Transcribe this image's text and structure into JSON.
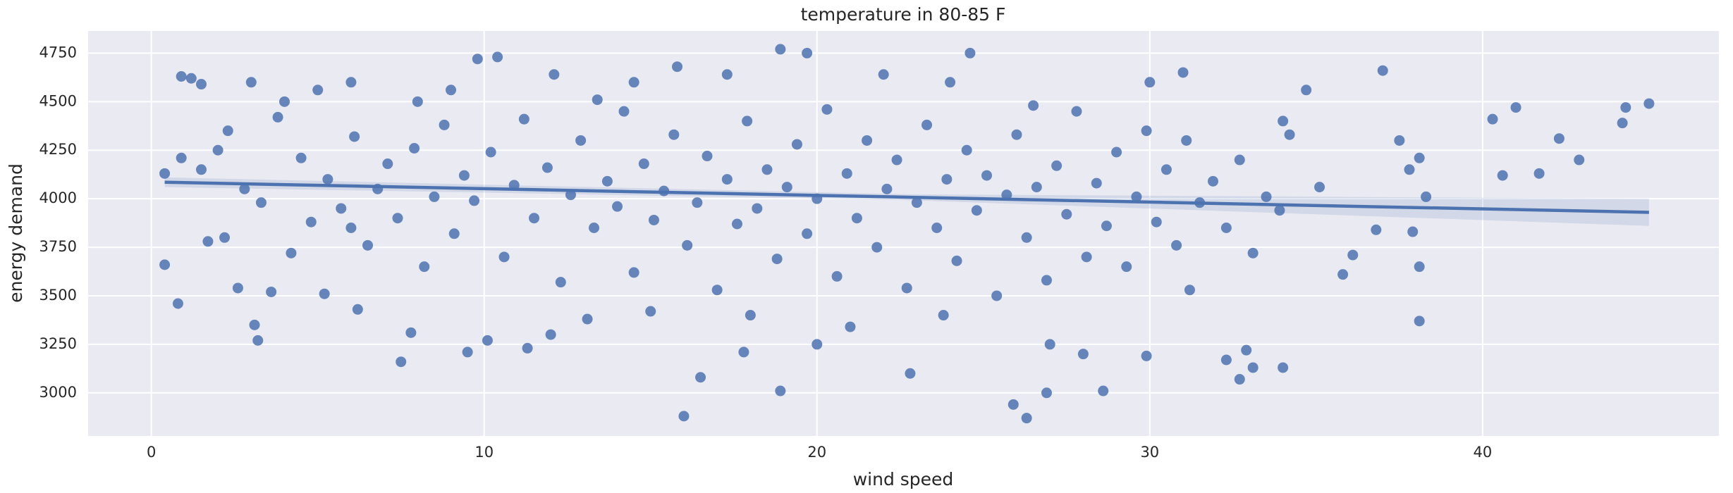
{
  "chart_data": {
    "type": "scatter",
    "title": "temperature in 80-85 F",
    "x_label": "wind speed",
    "y_label": "energy demand",
    "xlim": [
      -1.9,
      47.1
    ],
    "ylim": [
      2778,
      4864
    ],
    "xticks": [
      0,
      10,
      20,
      30,
      40
    ],
    "yticks": [
      3000,
      3250,
      3500,
      3750,
      4000,
      4250,
      4500,
      4750
    ],
    "grid": true,
    "background": "#eaeaf2",
    "series": [
      {
        "name": "observations",
        "color": "#4c72b0",
        "x": [
          0.4,
          0.4,
          0.8,
          0.9,
          0.9,
          1.2,
          1.5,
          1.7,
          2.0,
          2.2,
          2.6,
          3.0,
          3.1,
          3.2,
          3.6,
          4.0,
          5.0,
          5.2,
          6.0,
          6.2,
          7.5,
          7.8,
          9.0,
          9.5,
          9.8,
          10.1,
          10.4,
          11.3,
          12.1,
          13.1,
          13.4,
          15.8,
          16.0,
          16.5,
          17.3,
          17.8,
          18.9,
          18.9,
          19.7,
          21.0,
          22.8,
          24.6,
          25.9,
          26.3,
          26.9,
          28.6,
          29.9,
          31.0,
          31.2,
          32.3,
          32.7,
          32.9,
          33.1,
          34.0,
          34.0,
          34.7,
          35.1,
          35.8,
          36.1,
          36.8,
          37.0,
          37.5,
          37.8,
          37.9,
          38.1,
          38.1,
          38.1,
          38.3,
          40.3,
          40.6,
          41.0,
          41.7,
          42.3,
          42.9,
          44.2,
          44.3,
          45.0,
          1.5,
          2.3,
          2.8,
          3.3,
          3.8,
          4.2,
          4.5,
          4.8,
          5.3,
          5.7,
          6.1,
          6.5,
          6.8,
          7.1,
          7.4,
          7.9,
          8.2,
          8.5,
          8.8,
          9.1,
          9.4,
          9.7,
          10.2,
          10.6,
          10.9,
          11.2,
          11.5,
          11.9,
          12.3,
          12.6,
          12.9,
          13.3,
          13.7,
          14.0,
          14.2,
          14.5,
          14.8,
          15.1,
          15.4,
          15.7,
          16.1,
          16.4,
          16.7,
          17.0,
          17.3,
          17.6,
          17.9,
          18.2,
          18.5,
          18.8,
          19.1,
          19.4,
          19.7,
          20.0,
          20.3,
          20.6,
          20.9,
          21.2,
          21.5,
          21.8,
          22.1,
          22.4,
          22.7,
          23.0,
          23.3,
          23.6,
          23.9,
          24.2,
          24.5,
          24.8,
          25.1,
          25.4,
          25.7,
          26.0,
          26.3,
          26.6,
          26.9,
          27.2,
          27.5,
          27.8,
          28.1,
          28.4,
          28.7,
          29.0,
          29.3,
          29.6,
          29.9,
          30.2,
          30.5,
          30.8,
          31.1,
          31.5,
          31.9,
          32.3,
          32.7,
          33.1,
          33.5,
          33.9,
          34.2,
          12.0,
          15.0,
          20.0,
          23.8,
          27.0,
          28.0,
          30.0,
          8.0,
          14.5,
          22.0,
          26.5,
          6.0,
          18.0,
          24.0
        ],
        "values": [
          4130,
          3660,
          3460,
          4210,
          4630,
          4620,
          4590,
          3780,
          4250,
          3800,
          3540,
          4600,
          3350,
          3270,
          3520,
          4500,
          4560,
          3510,
          4600,
          3430,
          3160,
          3310,
          4560,
          3210,
          4720,
          3270,
          4730,
          3230,
          4640,
          3380,
          4510,
          4680,
          2880,
          3080,
          4640,
          3210,
          3010,
          4770,
          4750,
          3340,
          3100,
          4750,
          2940,
          2870,
          3000,
          3010,
          3190,
          4650,
          3530,
          3170,
          3070,
          3220,
          3130,
          3130,
          4400,
          4560,
          4060,
          3610,
          3710,
          3840,
          4660,
          4300,
          4150,
          3830,
          4210,
          3650,
          3370,
          4010,
          4410,
          4120,
          4470,
          4130,
          4310,
          4200,
          4390,
          4470,
          4490,
          4150,
          4350,
          4050,
          3980,
          4420,
          3720,
          4210,
          3880,
          4100,
          3950,
          4320,
          3760,
          4050,
          4180,
          3900,
          4260,
          3650,
          4010,
          4380,
          3820,
          4120,
          3990,
          4240,
          3700,
          4070,
          4410,
          3900,
          4160,
          3570,
          4020,
          4300,
          3850,
          4090,
          3960,
          4450,
          3620,
          4180,
          3890,
          4040,
          4330,
          3760,
          3980,
          4220,
          3530,
          4100,
          3870,
          4400,
          3950,
          4150,
          3690,
          4060,
          4280,
          3820,
          4000,
          4460,
          3600,
          4130,
          3900,
          4300,
          3750,
          4050,
          4200,
          3540,
          3980,
          4380,
          3850,
          4100,
          3680,
          4250,
          3940,
          4120,
          3500,
          4020,
          4330,
          3800,
          4060,
          3580,
          4170,
          3920,
          4450,
          3700,
          4080,
          3860,
          4240,
          3650,
          4010,
          4350,
          3880,
          4150,
          3760,
          4300,
          3980,
          4090,
          3850,
          4200,
          3720,
          4010,
          3940,
          4330,
          3300,
          3420,
          3250,
          3400,
          3250,
          3200,
          4600,
          4500,
          4600,
          4640,
          4480,
          3850,
          3400,
          4600
        ]
      }
    ],
    "regression": {
      "color": "#4c72b0",
      "x": [
        0.4,
        22.7,
        45.0
      ],
      "values": [
        4085,
        4008,
        3930
      ],
      "ci_lower": [
        4060,
        3993,
        3860
      ],
      "ci_upper": [
        4110,
        4023,
        4000
      ]
    }
  }
}
